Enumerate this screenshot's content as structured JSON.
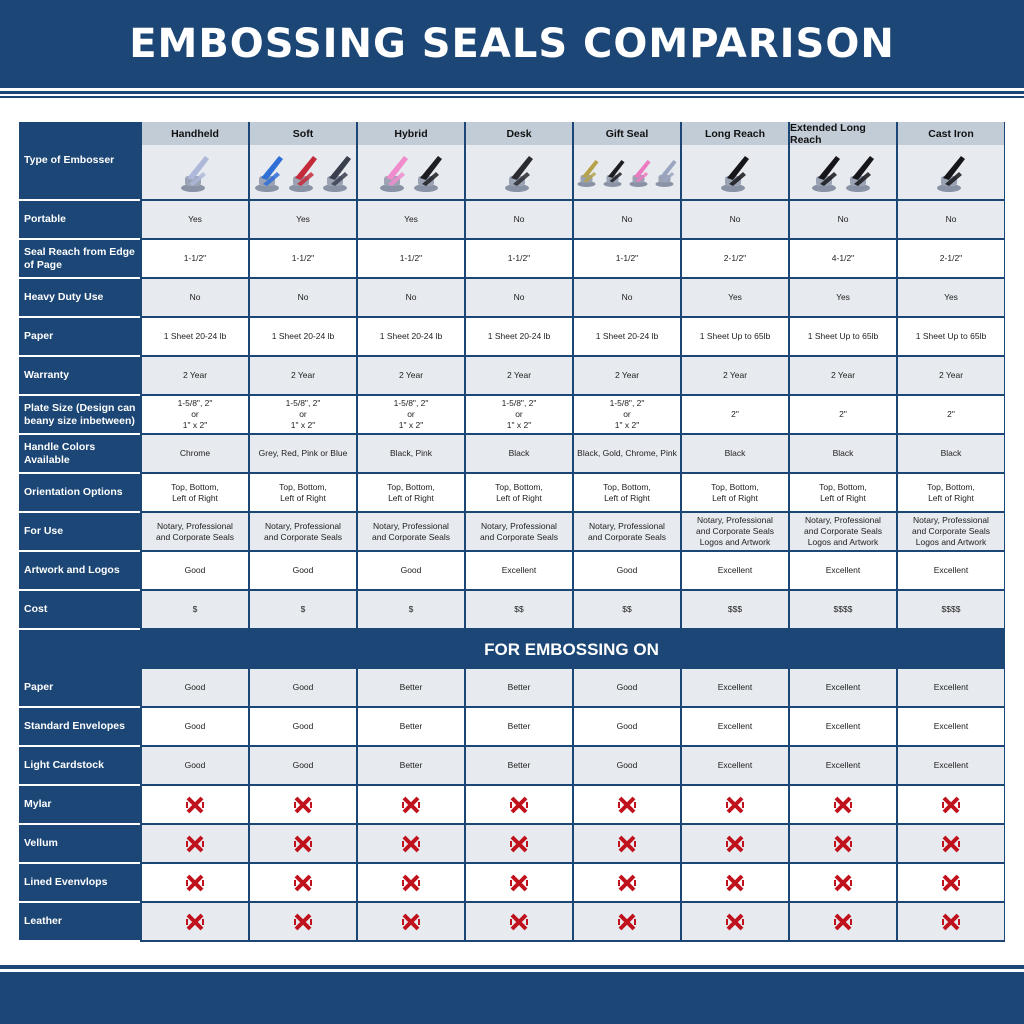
{
  "title": "EMBOSSING SEALS COMPARISON",
  "colors": {
    "navy": "#1b4675",
    "header_grey": "#c2ccd6",
    "row_grey": "#e7eaee",
    "x_red": "#c0121d"
  },
  "type_label": "Type of Embosser",
  "columns": [
    {
      "name": "Handheld",
      "image_colors": [
        "#aeb8d8"
      ]
    },
    {
      "name": "Soft",
      "image_colors": [
        "#2f6fd6",
        "#c42a3a",
        "#3a3f4e"
      ]
    },
    {
      "name": "Hybrid",
      "image_colors": [
        "#f08ccc",
        "#1e1e22"
      ]
    },
    {
      "name": "Desk",
      "image_colors": [
        "#2a2a30"
      ]
    },
    {
      "name": "Gift Seal",
      "image_colors": [
        "#b5a24a",
        "#1e1e22",
        "#ec7ac0",
        "#9aa6c0"
      ]
    },
    {
      "name": "Long Reach",
      "image_colors": [
        "#16161a"
      ]
    },
    {
      "name": "Extended Long Reach",
      "image_colors": [
        "#16161a",
        "#16161a"
      ]
    },
    {
      "name": "Cast Iron",
      "image_colors": [
        "#16161a"
      ]
    }
  ],
  "rows": [
    {
      "label": "Portable",
      "values": [
        "Yes",
        "Yes",
        "Yes",
        "No",
        "No",
        "No",
        "No",
        "No"
      ]
    },
    {
      "label": "Seal Reach from Edge of Page",
      "values": [
        "1-1/2\"",
        "1-1/2\"",
        "1-1/2\"",
        "1-1/2\"",
        "1-1/2\"",
        "2-1/2\"",
        "4-1/2\"",
        "2-1/2\""
      ]
    },
    {
      "label": "Heavy Duty Use",
      "values": [
        "No",
        "No",
        "No",
        "No",
        "No",
        "Yes",
        "Yes",
        "Yes"
      ]
    },
    {
      "label": "Paper",
      "values": [
        "1 Sheet 20-24 lb",
        "1 Sheet 20-24 lb",
        "1 Sheet 20-24 lb",
        "1 Sheet 20-24 lb",
        "1 Sheet 20-24 lb",
        "1 Sheet Up to 65lb",
        "1 Sheet Up to 65lb",
        "1 Sheet Up to 65lb"
      ]
    },
    {
      "label": "Warranty",
      "values": [
        "2 Year",
        "2 Year",
        "2 Year",
        "2 Year",
        "2 Year",
        "2 Year",
        "2 Year",
        "2 Year"
      ]
    },
    {
      "label": "Plate Size (Design can beany size inbetween)",
      "values": [
        "1-5/8\", 2\"\nor\n1\" x 2\"",
        "1-5/8\", 2\"\nor\n1\" x 2\"",
        "1-5/8\", 2\"\nor\n1\" x 2\"",
        "1-5/8\", 2\"\nor\n1\" x 2\"",
        "1-5/8\", 2\"\nor\n1\" x 2\"",
        "2\"",
        "2\"",
        "2\""
      ]
    },
    {
      "label": "Handle Colors Available",
      "values": [
        "Chrome",
        "Grey, Red, Pink or Blue",
        "Black, Pink",
        "Black",
        "Black, Gold, Chrome, Pink",
        "Black",
        "Black",
        "Black"
      ]
    },
    {
      "label": "Orientation Options",
      "values": [
        "Top, Bottom,\nLeft of Right",
        "Top, Bottom,\nLeft of Right",
        "Top, Bottom,\nLeft of Right",
        "Top, Bottom,\nLeft of Right",
        "Top, Bottom,\nLeft of Right",
        "Top, Bottom,\nLeft of Right",
        "Top, Bottom,\nLeft of Right",
        "Top, Bottom,\nLeft of Right"
      ]
    },
    {
      "label": "For Use",
      "values": [
        "Notary, Professional\nand Corporate Seals",
        "Notary, Professional\nand Corporate Seals",
        "Notary, Professional\nand Corporate Seals",
        "Notary, Professional\nand Corporate Seals",
        "Notary, Professional\nand Corporate Seals",
        "Notary, Professional\nand Corporate Seals\nLogos and Artwork",
        "Notary, Professional\nand Corporate Seals\nLogos and Artwork",
        "Notary, Professional\nand Corporate Seals\nLogos and Artwork"
      ]
    },
    {
      "label": "Artwork and Logos",
      "values": [
        "Good",
        "Good",
        "Good",
        "Excellent",
        "Good",
        "Excellent",
        "Excellent",
        "Excellent"
      ]
    },
    {
      "label": "Cost",
      "values": [
        "$",
        "$",
        "$",
        "$$",
        "$$",
        "$$$",
        "$$$$",
        "$$$$"
      ]
    }
  ],
  "section_title": "FOR EMBOSSING ON",
  "embossing_rows": [
    {
      "label": "Paper",
      "values": [
        "Good",
        "Good",
        "Better",
        "Better",
        "Good",
        "Excellent",
        "Excellent",
        "Excellent"
      ]
    },
    {
      "label": "Standard Envelopes",
      "values": [
        "Good",
        "Good",
        "Better",
        "Better",
        "Good",
        "Excellent",
        "Excellent",
        "Excellent"
      ]
    },
    {
      "label": "Light Cardstock",
      "values": [
        "Good",
        "Good",
        "Better",
        "Better",
        "Good",
        "Excellent",
        "Excellent",
        "Excellent"
      ]
    },
    {
      "label": "Mylar",
      "icon": "red-x-icon"
    },
    {
      "label": "Vellum",
      "icon": "red-x-icon"
    },
    {
      "label": "Lined Evenvlops",
      "icon": "red-x-icon"
    },
    {
      "label": "Leather",
      "icon": "red-x-icon"
    }
  ]
}
